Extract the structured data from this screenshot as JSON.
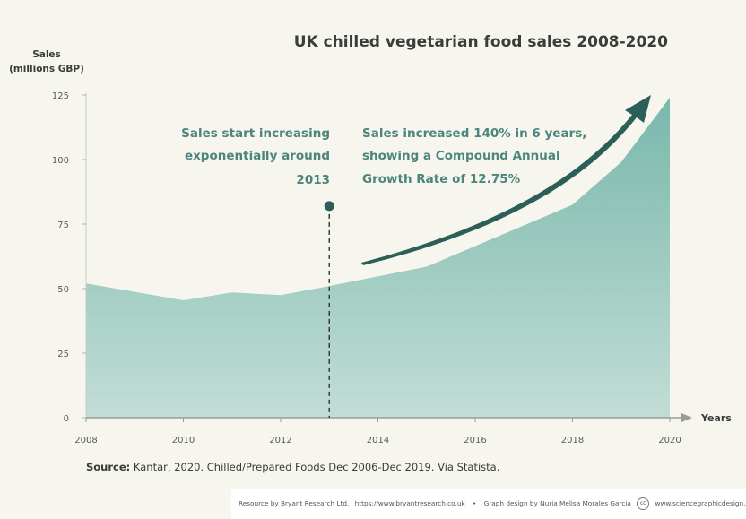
{
  "chart_data": {
    "type": "area",
    "title": "UK chilled vegetarian food sales 2008-2020",
    "ylabel_line1": "Sales",
    "ylabel_line2": "(millions GBP)",
    "xlabel": "Years",
    "x": [
      2008,
      2010,
      2011,
      2012,
      2013,
      2015,
      2018,
      2019,
      2020
    ],
    "values": [
      52,
      45.5,
      48.5,
      47.5,
      51,
      58.5,
      82.5,
      99,
      124
    ],
    "xlim": [
      2008,
      2020
    ],
    "ylim": [
      0,
      125
    ],
    "x_ticks": [
      "2008",
      "2010",
      "2012",
      "2014",
      "2016",
      "2018",
      "2020"
    ],
    "y_ticks": [
      "0",
      "25",
      "50",
      "75",
      "100",
      "125"
    ],
    "fill_color_top": "#79b8ab",
    "fill_color_bottom": "#c2ddd6",
    "annotations": [
      {
        "id": "exp",
        "lines": [
          "Sales start increasing",
          "exponentially around",
          "2013"
        ],
        "x": 2013,
        "y": 82
      },
      {
        "id": "growth",
        "lines": [
          "Sales increased 140% in 6 years,",
          "showing a Compound Annual",
          "Growth Rate of 12.75%"
        ]
      }
    ],
    "arrow_color": "#2c5f58",
    "grid": false
  },
  "source": {
    "label": "Source:",
    "text": " Kantar, 2020. Chilled/Prepared Foods Dec 2006-Dec 2019. Via Statista."
  },
  "footer": {
    "resource": "Resource by Bryant Research Ltd.",
    "resource_url": "https://www.bryantresearch.co.uk",
    "separator": "•",
    "design": "Graph design by Nuria Melisa Morales Garcia",
    "design_url": "www.sciencegraphicdesign.com",
    "cc_label": "cc"
  }
}
